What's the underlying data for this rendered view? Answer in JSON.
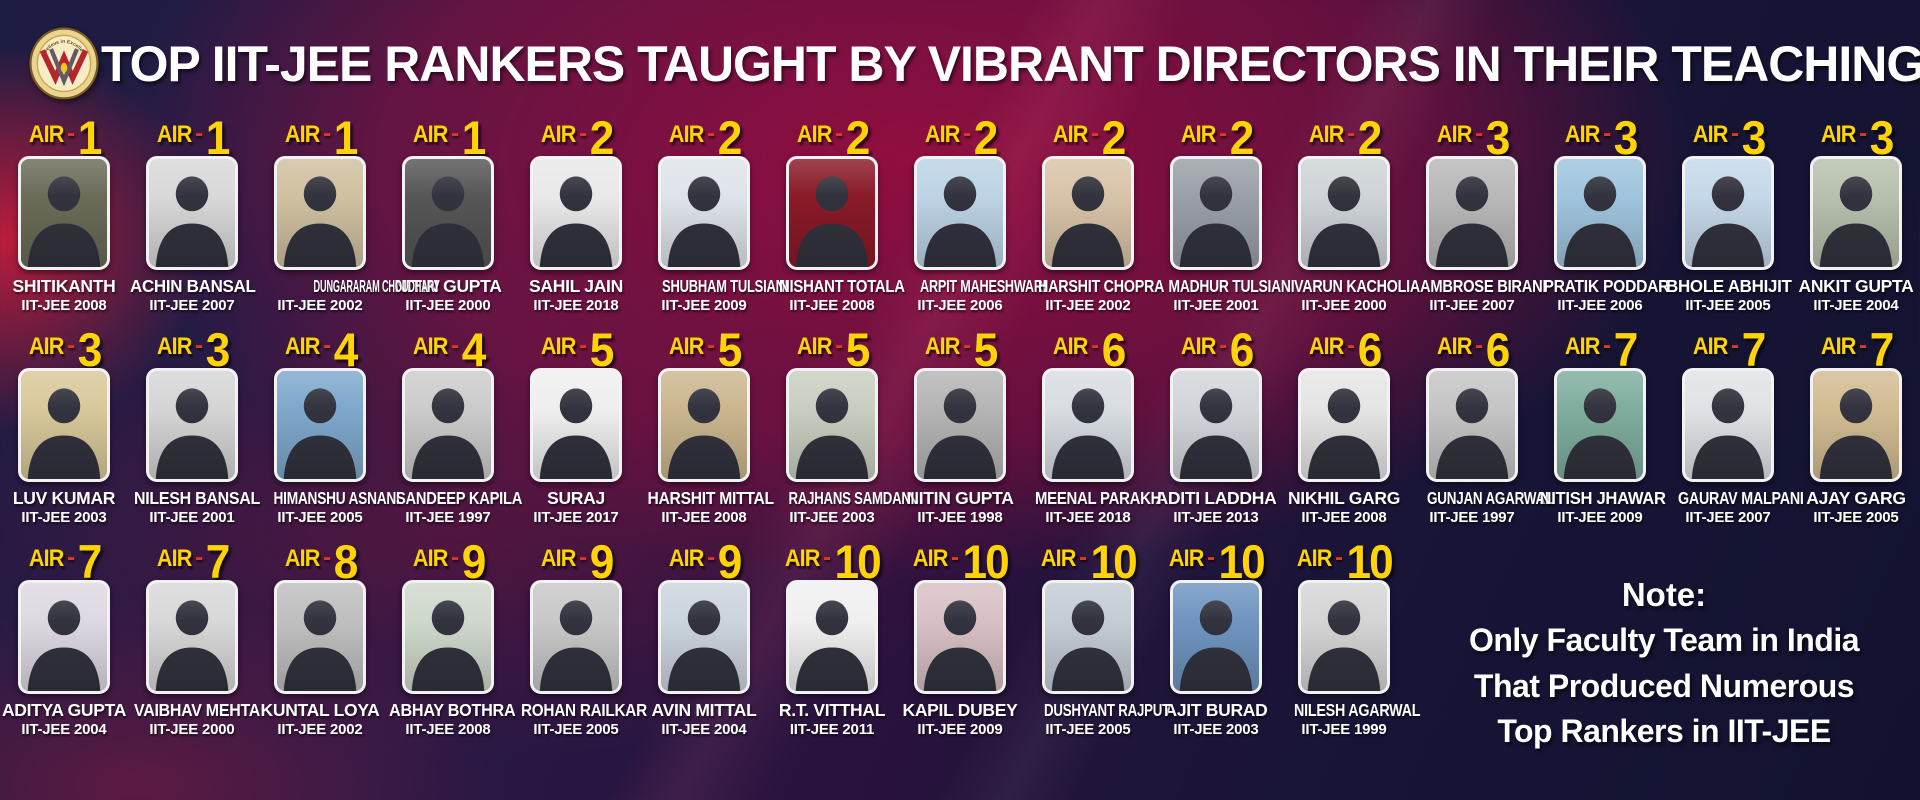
{
  "page": {
    "title": "TOP IIT-JEE RANKERS TAUGHT BY VIBRANT DIRECTORS IN THEIR TEACHING CAREER",
    "logo_arc_text": "Believe in Excellence"
  },
  "labels": {
    "air_prefix": "AIR",
    "air_separator": "-"
  },
  "note": {
    "heading": "Note:",
    "lines": [
      "Only Faculty Team in India",
      "That Produced Numerous",
      "Top Rankers in IIT-JEE"
    ]
  },
  "colors": {
    "accent_yellow": "#ffd400",
    "dash_red": "#e03a1e",
    "title_white": "#ffffff",
    "card_border": "#f2f2f2",
    "photo_silhouette": "#33333f",
    "background_navy": "#1d1c42",
    "background_maroon": "#960e40"
  },
  "rows": [
    {
      "people": [
        {
          "air": "1",
          "name": "SHITIKANTH",
          "exam": "IIT-JEE 2008",
          "photo_bg": "#6b6b58"
        },
        {
          "air": "1",
          "name": "ACHIN BANSAL",
          "exam": "IIT-JEE 2007",
          "photo_bg": "#d8d8d8"
        },
        {
          "air": "1",
          "name": "DUNGARARAM CHOUDHARY",
          "exam": "IIT-JEE 2002",
          "photo_bg": "#cfc0a0"
        },
        {
          "air": "1",
          "name": "NITIN GUPTA",
          "exam": "IIT-JEE 2000",
          "photo_bg": "#565656"
        },
        {
          "air": "2",
          "name": "SAHIL JAIN",
          "exam": "IIT-JEE 2018",
          "photo_bg": "#e9e9e9"
        },
        {
          "air": "2",
          "name": "SHUBHAM TULSIANI",
          "exam": "IIT-JEE 2009",
          "photo_bg": "#dfe4ea"
        },
        {
          "air": "2",
          "name": "NISHANT TOTALA",
          "exam": "IIT-JEE 2008",
          "photo_bg": "#8a1a28"
        },
        {
          "air": "2",
          "name": "ARPIT MAHESHWARI",
          "exam": "IIT-JEE 2006",
          "photo_bg": "#bcd3e6"
        },
        {
          "air": "2",
          "name": "HARSHIT CHOPRA",
          "exam": "IIT-JEE 2002",
          "photo_bg": "#d9c3a8"
        },
        {
          "air": "2",
          "name": "MADHUR TULSIANI",
          "exam": "IIT-JEE 2001",
          "photo_bg": "#9aa0a8"
        },
        {
          "air": "2",
          "name": "VARUN KACHOLIA",
          "exam": "IIT-JEE 2000",
          "photo_bg": "#cfd4d8"
        },
        {
          "air": "3",
          "name": "AMBROSE BIRANI",
          "exam": "IIT-JEE 2007",
          "photo_bg": "#b8b8b8"
        },
        {
          "air": "3",
          "name": "PRATIK PODDAR",
          "exam": "IIT-JEE 2006",
          "photo_bg": "#9fc4dd"
        },
        {
          "air": "3",
          "name": "BHOLE ABHIJIT",
          "exam": "IIT-JEE 2005",
          "photo_bg": "#c5d8ea"
        },
        {
          "air": "3",
          "name": "ANKIT GUPTA",
          "exam": "IIT-JEE 2004",
          "photo_bg": "#b7c0ae"
        }
      ]
    },
    {
      "people": [
        {
          "air": "3",
          "name": "LUV KUMAR",
          "exam": "IIT-JEE 2003",
          "photo_bg": "#d8c89a"
        },
        {
          "air": "3",
          "name": "NILESH BANSAL",
          "exam": "IIT-JEE 2001",
          "photo_bg": "#d5d5d5"
        },
        {
          "air": "4",
          "name": "HIMANSHU ASNANI",
          "exam": "IIT-JEE 2005",
          "photo_bg": "#7ea8cc"
        },
        {
          "air": "4",
          "name": "SANDEEP KAPILA",
          "exam": "IIT-JEE 1997",
          "photo_bg": "#cccccc"
        },
        {
          "air": "5",
          "name": "SURAJ",
          "exam": "IIT-JEE 2017",
          "photo_bg": "#efefef"
        },
        {
          "air": "5",
          "name": "HARSHIT MITTAL",
          "exam": "IIT-JEE 2008",
          "photo_bg": "#cbb68e"
        },
        {
          "air": "5",
          "name": "RAJHANS SAMDANI",
          "exam": "IIT-JEE 2003",
          "photo_bg": "#c8cfc0"
        },
        {
          "air": "5",
          "name": "NITIN GUPTA",
          "exam": "IIT-JEE 1998",
          "photo_bg": "#b5b5b5"
        },
        {
          "air": "6",
          "name": "MEENAL PARAKH",
          "exam": "IIT-JEE 2018",
          "photo_bg": "#d8dde2"
        },
        {
          "air": "6",
          "name": "ADITI LADDHA",
          "exam": "IIT-JEE 2013",
          "photo_bg": "#d2d6da"
        },
        {
          "air": "6",
          "name": "NIKHIL GARG",
          "exam": "IIT-JEE 2008",
          "photo_bg": "#e5e5e5"
        },
        {
          "air": "6",
          "name": "GUNJAN AGARWAL",
          "exam": "IIT-JEE 1997",
          "photo_bg": "#c5c5c5"
        },
        {
          "air": "7",
          "name": "NITISH JHAWAR",
          "exam": "IIT-JEE 2009",
          "photo_bg": "#7fae9e"
        },
        {
          "air": "7",
          "name": "GAURAV MALPANI",
          "exam": "IIT-JEE 2007",
          "photo_bg": "#dfe3e6"
        },
        {
          "air": "7",
          "name": "AJAY GARG",
          "exam": "IIT-JEE 2005",
          "photo_bg": "#d2bc92"
        }
      ]
    },
    {
      "has_note": true,
      "people": [
        {
          "air": "7",
          "name": "ADITYA GUPTA",
          "exam": "IIT-JEE 2004",
          "photo_bg": "#ded8e2"
        },
        {
          "air": "7",
          "name": "VAIBHAV MEHTA",
          "exam": "IIT-JEE 2000",
          "photo_bg": "#d8d8d8"
        },
        {
          "air": "8",
          "name": "KUNTAL LOYA",
          "exam": "IIT-JEE 2002",
          "photo_bg": "#bfbfbf"
        },
        {
          "air": "9",
          "name": "ABHAY BOTHRA",
          "exam": "IIT-JEE 2008",
          "photo_bg": "#cfd8cc"
        },
        {
          "air": "9",
          "name": "ROHAN RAILKAR",
          "exam": "IIT-JEE 2005",
          "photo_bg": "#c8c8c8"
        },
        {
          "air": "9",
          "name": "AVIN MITTAL",
          "exam": "IIT-JEE 2004",
          "photo_bg": "#ccd4dc"
        },
        {
          "air": "10",
          "name": "R.T. VITTHAL",
          "exam": "IIT-JEE 2011",
          "photo_bg": "#f0f0f0"
        },
        {
          "air": "10",
          "name": "KAPIL DUBEY",
          "exam": "IIT-JEE 2009",
          "photo_bg": "#d8c0c4"
        },
        {
          "air": "10",
          "name": "DUSHYANT RAJPUT",
          "exam": "IIT-JEE 2005",
          "photo_bg": "#c4ccd4"
        },
        {
          "air": "10",
          "name": "AJIT BURAD",
          "exam": "IIT-JEE 2003",
          "photo_bg": "#6f95c0"
        },
        {
          "air": "10",
          "name": "NILESH AGARWAL",
          "exam": "IIT-JEE 1999",
          "photo_bg": "#d5d5d5"
        }
      ]
    }
  ]
}
